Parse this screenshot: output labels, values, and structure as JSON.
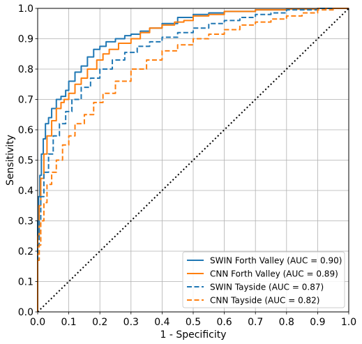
{
  "chart_data": {
    "type": "line",
    "title": "",
    "xlabel": "1 - Specificity",
    "ylabel": "Sensitivity",
    "xlim": [
      0.0,
      1.0
    ],
    "ylim": [
      0.0,
      1.0
    ],
    "xticks": [
      "0.0",
      "0.1",
      "0.2",
      "0.3",
      "0.4",
      "0.5",
      "0.6",
      "0.7",
      "0.8",
      "0.9",
      "1.0"
    ],
    "yticks": [
      "0.0",
      "0.1",
      "0.2",
      "0.3",
      "0.4",
      "0.5",
      "0.6",
      "0.7",
      "0.8",
      "0.9",
      "1.0"
    ],
    "grid": true,
    "legend_position": "lower-right",
    "series": [
      {
        "name": "SWIN Forth Valley (AUC = 0.90)",
        "color": "#1f77b4",
        "dash": "solid",
        "x": [
          0.0,
          0.0,
          0.003,
          0.007,
          0.012,
          0.018,
          0.025,
          0.035,
          0.045,
          0.06,
          0.075,
          0.09,
          0.1,
          0.12,
          0.14,
          0.16,
          0.18,
          0.2,
          0.22,
          0.25,
          0.28,
          0.3,
          0.33,
          0.36,
          0.4,
          0.45,
          0.5,
          0.55,
          0.6,
          0.7,
          0.8,
          0.9,
          1.0
        ],
        "y": [
          0.0,
          0.2,
          0.3,
          0.38,
          0.45,
          0.52,
          0.57,
          0.62,
          0.64,
          0.67,
          0.7,
          0.71,
          0.73,
          0.76,
          0.79,
          0.81,
          0.84,
          0.865,
          0.875,
          0.89,
          0.9,
          0.91,
          0.915,
          0.925,
          0.935,
          0.95,
          0.97,
          0.98,
          0.985,
          0.99,
          0.995,
          0.998,
          1.0
        ]
      },
      {
        "name": "CNN Forth Valley (AUC = 0.89)",
        "color": "#ff7f0e",
        "dash": "solid",
        "x": [
          0.0,
          0.0,
          0.005,
          0.01,
          0.02,
          0.03,
          0.045,
          0.06,
          0.075,
          0.085,
          0.1,
          0.12,
          0.14,
          0.16,
          0.19,
          0.21,
          0.23,
          0.26,
          0.3,
          0.33,
          0.36,
          0.4,
          0.44,
          0.47,
          0.5,
          0.55,
          0.6,
          0.7,
          0.8,
          0.9,
          1.0
        ],
        "y": [
          0.0,
          0.15,
          0.25,
          0.35,
          0.44,
          0.52,
          0.58,
          0.63,
          0.67,
          0.69,
          0.7,
          0.72,
          0.75,
          0.77,
          0.8,
          0.83,
          0.85,
          0.865,
          0.885,
          0.9,
          0.92,
          0.935,
          0.945,
          0.955,
          0.96,
          0.975,
          0.98,
          0.99,
          0.995,
          0.998,
          1.0
        ]
      },
      {
        "name": "SWIN Tayside (AUC = 0.87)",
        "color": "#1f77b4",
        "dash": "dashed",
        "x": [
          0.0,
          0.0,
          0.005,
          0.01,
          0.02,
          0.035,
          0.05,
          0.07,
          0.09,
          0.11,
          0.14,
          0.17,
          0.2,
          0.24,
          0.28,
          0.32,
          0.36,
          0.4,
          0.45,
          0.5,
          0.55,
          0.6,
          0.65,
          0.7,
          0.75,
          0.8,
          0.9,
          1.0
        ],
        "y": [
          0.0,
          0.12,
          0.22,
          0.3,
          0.38,
          0.46,
          0.52,
          0.58,
          0.62,
          0.66,
          0.7,
          0.74,
          0.77,
          0.8,
          0.83,
          0.855,
          0.875,
          0.89,
          0.905,
          0.92,
          0.935,
          0.95,
          0.96,
          0.97,
          0.98,
          0.985,
          0.995,
          1.0
        ]
      },
      {
        "name": "CNN Tayside (AUC = 0.82)",
        "color": "#ff7f0e",
        "dash": "dashed",
        "x": [
          0.0,
          0.0,
          0.005,
          0.01,
          0.02,
          0.03,
          0.045,
          0.06,
          0.08,
          0.1,
          0.12,
          0.15,
          0.18,
          0.21,
          0.25,
          0.3,
          0.35,
          0.4,
          0.45,
          0.5,
          0.55,
          0.6,
          0.65,
          0.7,
          0.75,
          0.8,
          0.85,
          0.9,
          0.95,
          1.0
        ],
        "y": [
          0.0,
          0.1,
          0.17,
          0.22,
          0.3,
          0.36,
          0.42,
          0.46,
          0.5,
          0.55,
          0.58,
          0.62,
          0.65,
          0.69,
          0.72,
          0.76,
          0.8,
          0.83,
          0.86,
          0.88,
          0.9,
          0.915,
          0.93,
          0.945,
          0.955,
          0.965,
          0.975,
          0.985,
          0.995,
          1.0
        ]
      },
      {
        "name": "",
        "color": "#000000",
        "dash": "dotted",
        "x": [
          0.0,
          1.0
        ],
        "y": [
          0.0,
          1.0
        ]
      }
    ]
  }
}
